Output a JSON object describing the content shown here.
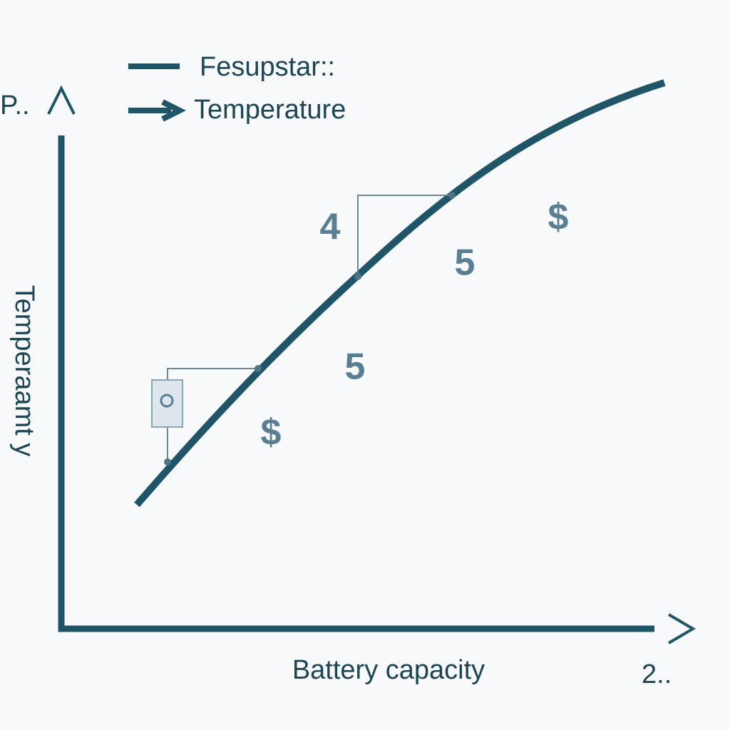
{
  "legend": [
    {
      "label": "Fesupstar::"
    },
    {
      "label": "Temperature"
    }
  ],
  "y_axis": {
    "label": "Temperaamt y",
    "end_label": "P.."
  },
  "x_axis": {
    "label": "Battery capacity",
    "end_label": "2.."
  },
  "annotations": [
    {
      "text": 4
    },
    {
      "text": 5
    },
    {
      "text": 5
    },
    {
      "text": "$"
    },
    {
      "text": "$"
    }
  ]
}
